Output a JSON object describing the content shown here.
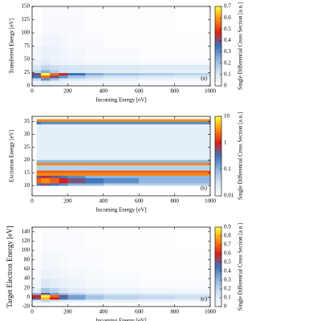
{
  "chart_data": [
    {
      "type": "heatmap",
      "panel_label": "(a)",
      "xlabel": "Incoming Energy [eV]",
      "ylabel": "Transferred Energy [eV]",
      "colorbar_label": "Single Differential Cross Section [a.u.]",
      "xlim": [
        0,
        1000
      ],
      "xticks": [
        0,
        200,
        400,
        600,
        800,
        1000
      ],
      "ylim": [
        0,
        150
      ],
      "yticks": [
        0,
        25,
        50,
        75,
        100,
        125,
        150
      ],
      "clim": [
        0,
        0.7
      ],
      "cticks": [
        0,
        0.1,
        0.2,
        0.3,
        0.4,
        0.5,
        0.6,
        0.7
      ],
      "cscale": "linear",
      "colormap": [
        "#ffffff",
        "#d4e4f4",
        "#8fb6de",
        "#3e74b8",
        "#d8201c",
        "#ff8c10",
        "#ffff40"
      ],
      "x_bins": [
        0,
        50,
        100,
        150,
        200,
        300,
        400,
        600,
        800,
        1000
      ],
      "y_bins": [
        0,
        10,
        15,
        20,
        25,
        30,
        40,
        50,
        75,
        100,
        150
      ],
      "z": [
        [
          0.05,
          0.08,
          0.06,
          0.05,
          0.04,
          0.03,
          0.03,
          0.02,
          0.02
        ],
        [
          0.15,
          0.3,
          0.2,
          0.12,
          0.1,
          0.08,
          0.06,
          0.05,
          0.04
        ],
        [
          0.35,
          0.55,
          0.4,
          0.3,
          0.2,
          0.15,
          0.12,
          0.1,
          0.09
        ],
        [
          0.4,
          0.7,
          0.55,
          0.45,
          0.35,
          0.25,
          0.2,
          0.18,
          0.16
        ],
        [
          0.15,
          0.25,
          0.18,
          0.12,
          0.1,
          0.08,
          0.07,
          0.06,
          0.06
        ],
        [
          0.1,
          0.15,
          0.13,
          0.12,
          0.11,
          0.1,
          0.1,
          0.09,
          0.09
        ],
        [
          0.05,
          0.08,
          0.06,
          0.05,
          0.04,
          0.03,
          0.03,
          0.02,
          0.02
        ],
        [
          0.03,
          0.06,
          0.05,
          0.04,
          0.03,
          0.02,
          0.02,
          0.01,
          0.01
        ],
        [
          0.01,
          0.04,
          0.04,
          0.03,
          0.02,
          0.02,
          0.01,
          0.01,
          0.01
        ],
        [
          0,
          0.02,
          0.02,
          0.02,
          0.02,
          0.01,
          0.01,
          0.01,
          0
        ]
      ]
    },
    {
      "type": "heatmap",
      "panel_label": "(b)",
      "xlabel": "Incoming Energy [eV]",
      "ylabel": "Excitation Energy [eV]",
      "colorbar_label": "Single Differential Cross Section [a.u.]",
      "xlim": [
        0,
        1000
      ],
      "xticks": [
        0,
        200,
        400,
        600,
        800,
        1000
      ],
      "ylim": [
        6,
        37
      ],
      "yticks": [
        10,
        15,
        20,
        25,
        30,
        35
      ],
      "clim": [
        0.01,
        10
      ],
      "cticks": [
        0.01,
        0.1,
        1,
        10
      ],
      "cscale": "log",
      "colormap": [
        "#ffffff",
        "#d4e4f4",
        "#8fb6de",
        "#3e74b8",
        "#d8201c",
        "#ff8c10",
        "#ffff40"
      ],
      "x_bins": [
        25,
        50,
        100,
        150,
        200,
        300,
        400,
        600,
        800,
        1000
      ],
      "y_bins": [
        6,
        10,
        11,
        13,
        14,
        15,
        16,
        18,
        19,
        20,
        34,
        35,
        36,
        37
      ],
      "z": [
        [
          0.01,
          0.01,
          0.01,
          0.01,
          0.01,
          0.01,
          0.01,
          0.01,
          0.01
        ],
        [
          0.3,
          0.5,
          0.3,
          0.2,
          0.1,
          0.1,
          0.05,
          0.05,
          0.05
        ],
        [
          2,
          3,
          2,
          1,
          0.5,
          0.3,
          0.2,
          0.1,
          0.1
        ],
        [
          0.5,
          0.8,
          0.5,
          0.3,
          0.2,
          0.1,
          0.1,
          0.1,
          0.1
        ],
        [
          3,
          3,
          3,
          3,
          3,
          3,
          3,
          3,
          3
        ],
        [
          2,
          2,
          2,
          2,
          2,
          2,
          2,
          2,
          2
        ],
        [
          0.05,
          0.05,
          0.05,
          0.05,
          0.05,
          0.05,
          0.05,
          0.05,
          0.05
        ],
        [
          3,
          3,
          3,
          3,
          3,
          3,
          3,
          3,
          3
        ],
        [
          0.1,
          0.1,
          0.1,
          0.1,
          0.1,
          0.1,
          0.1,
          0.1,
          0.1
        ],
        [
          0.02,
          0.02,
          0.02,
          0.02,
          0.02,
          0.02,
          0.02,
          0.02,
          0.02
        ],
        [
          0.3,
          0.2,
          0.2,
          0.2,
          0.2,
          0.2,
          0.2,
          0.2,
          0.2
        ],
        [
          3,
          3,
          3,
          3,
          3,
          3,
          3,
          3,
          3
        ],
        [
          0.01,
          0.01,
          0.01,
          0.01,
          0.01,
          0.01,
          0.01,
          0.01,
          0.01
        ]
      ]
    },
    {
      "type": "heatmap",
      "panel_label": "(c)",
      "xlabel": "Incoming Energy [eV]",
      "ylabel": "Target Electron Energy [eV]",
      "colorbar_label": "Single Differential Cross Section [a.u.]",
      "xlim": [
        0,
        1000
      ],
      "xticks": [
        0,
        200,
        400,
        600,
        800,
        1000
      ],
      "ylim": [
        -20,
        150
      ],
      "yticks": [
        -20,
        0,
        20,
        40,
        60,
        80,
        100,
        120,
        140
      ],
      "clim": [
        0,
        0.9
      ],
      "cticks": [
        0,
        0.1,
        0.2,
        0.3,
        0.4,
        0.5,
        0.6,
        0.7,
        0.8,
        0.9
      ],
      "cscale": "linear",
      "colormap": [
        "#ffffff",
        "#d4e4f4",
        "#8fb6de",
        "#3e74b8",
        "#d8201c",
        "#ff8c10",
        "#ffff40"
      ],
      "x_bins": [
        0,
        50,
        100,
        150,
        200,
        300,
        400,
        600,
        800,
        1000
      ],
      "y_bins": [
        -20,
        -10,
        -5,
        0,
        5,
        10,
        20,
        40,
        60,
        100,
        150
      ],
      "z": [
        [
          0.02,
          0.03,
          0.02,
          0.02,
          0.02,
          0.01,
          0.01,
          0.01,
          0.01
        ],
        [
          0.1,
          0.2,
          0.15,
          0.12,
          0.1,
          0.08,
          0.07,
          0.06,
          0.05
        ],
        [
          0.5,
          0.8,
          0.6,
          0.45,
          0.35,
          0.25,
          0.2,
          0.18,
          0.16
        ],
        [
          0.6,
          0.9,
          0.7,
          0.5,
          0.35,
          0.25,
          0.2,
          0.18,
          0.16
        ],
        [
          0.3,
          0.5,
          0.35,
          0.25,
          0.2,
          0.15,
          0.12,
          0.1,
          0.09
        ],
        [
          0.1,
          0.25,
          0.2,
          0.15,
          0.1,
          0.08,
          0.06,
          0.05,
          0.04
        ],
        [
          0.05,
          0.12,
          0.1,
          0.08,
          0.06,
          0.04,
          0.03,
          0.02,
          0.02
        ],
        [
          0.02,
          0.07,
          0.06,
          0.05,
          0.04,
          0.03,
          0.02,
          0.01,
          0.01
        ],
        [
          0.01,
          0.04,
          0.04,
          0.03,
          0.02,
          0.02,
          0.01,
          0.01,
          0.01
        ],
        [
          0,
          0.02,
          0.02,
          0.02,
          0.02,
          0.01,
          0.01,
          0.01,
          0
        ]
      ]
    }
  ]
}
